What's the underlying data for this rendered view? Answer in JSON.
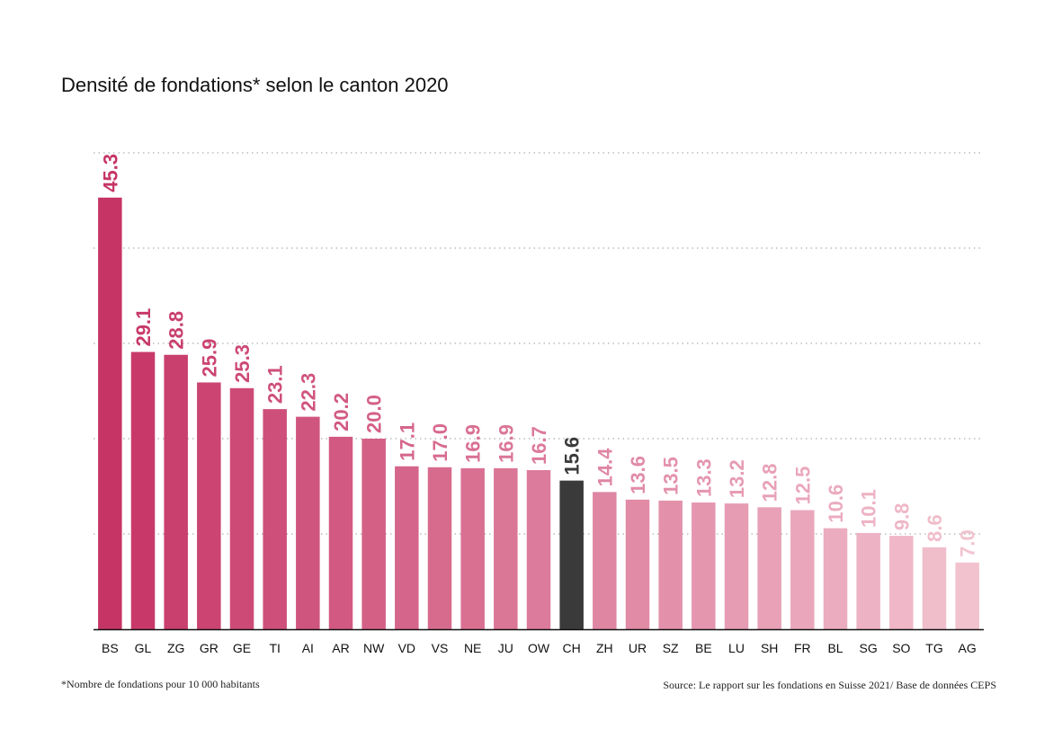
{
  "title": "Densité de fondations* selon le canton 2020",
  "footnote": "*Nombre de fondations pour 10 000 habitants",
  "source": "Source: Le rapport sur les fondations en Suisse 2021/ Base de données CEPS",
  "chart_data": {
    "type": "bar",
    "categories": [
      "BS",
      "GL",
      "ZG",
      "GR",
      "GE",
      "TI",
      "AI",
      "AR",
      "NW",
      "VD",
      "VS",
      "NE",
      "JU",
      "OW",
      "CH",
      "ZH",
      "UR",
      "SZ",
      "BE",
      "LU",
      "SH",
      "FR",
      "BL",
      "SG",
      "SO",
      "TG",
      "AG"
    ],
    "values": [
      45.3,
      29.1,
      28.8,
      25.9,
      25.3,
      23.1,
      22.3,
      20.2,
      20.0,
      17.1,
      17.0,
      16.9,
      16.9,
      16.7,
      15.6,
      14.4,
      13.6,
      13.5,
      13.3,
      13.2,
      12.8,
      12.5,
      10.6,
      10.1,
      9.8,
      8.6,
      7.0
    ],
    "value_labels": [
      "45.3",
      "29.1",
      "28.8",
      "25.9",
      "25.3",
      "23.1",
      "22.3",
      "20.2",
      "20.0",
      "17.1",
      "17.0",
      "16.9",
      "16.9",
      "16.7",
      "15.6",
      "14.4",
      "13.6",
      "13.5",
      "13.3",
      "13.2",
      "12.8",
      "12.5",
      "10.6",
      "10.1",
      "9.8",
      "8.6",
      "7.0"
    ],
    "highlight_category": "CH",
    "ylim": [
      0,
      50
    ],
    "gridlines": [
      10,
      20,
      30,
      40,
      50
    ],
    "grid": "dotted",
    "colors": {
      "gradient_start": "#c63466",
      "gradient_end": "#f2c2cf",
      "highlight": "#3a3a3a",
      "axis": "#111111",
      "grid": "#999999"
    }
  }
}
